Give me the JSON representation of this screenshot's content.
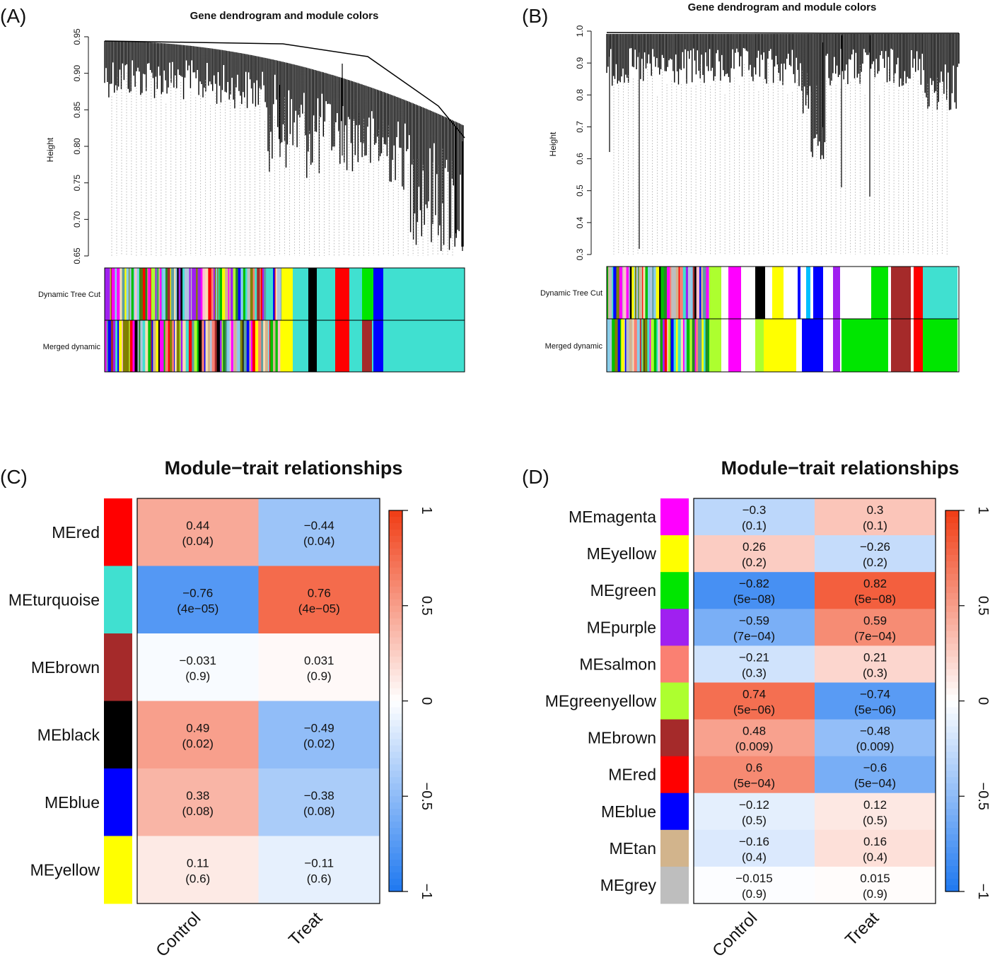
{
  "panels": {
    "A": {
      "letter": "(A)"
    },
    "B": {
      "letter": "(B)"
    },
    "C": {
      "letter": "(C)"
    },
    "D": {
      "letter": "(D)"
    }
  },
  "chart_data": [
    {
      "panel": "A",
      "type": "dendrogram",
      "title": "Gene dendrogram and module colors",
      "ylabel": "Height",
      "ylim": [
        0.65,
        0.95
      ],
      "yticks": [
        "0.65",
        "0.70",
        "0.75",
        "0.80",
        "0.85",
        "0.90",
        "0.95"
      ],
      "bands": [
        "Dynamic Tree Cut",
        "Merged dynamic"
      ]
    },
    {
      "panel": "B",
      "type": "dendrogram",
      "title": "Gene dendrogram and module colors",
      "ylabel": "Height",
      "ylim": [
        0.3,
        1.0
      ],
      "yticks": [
        "0.3",
        "0.4",
        "0.5",
        "0.6",
        "0.7",
        "0.8",
        "0.9",
        "1.0"
      ],
      "bands": [
        "Dynamic Tree Cut",
        "Merged dynamic"
      ]
    },
    {
      "panel": "C",
      "type": "heatmap",
      "title": "Module−trait relationships",
      "columns": [
        "Control",
        "Treat"
      ],
      "rows": [
        {
          "name": "MEred",
          "color": "#ff0000",
          "control": {
            "value": 0.44,
            "label": "0.44",
            "p": "(0.04)"
          },
          "treat": {
            "value": -0.44,
            "label": "−0.44",
            "p": "(0.04)"
          }
        },
        {
          "name": "MEturquoise",
          "color": "#40e0d0",
          "control": {
            "value": -0.76,
            "label": "−0.76",
            "p": "(4e−05)"
          },
          "treat": {
            "value": 0.76,
            "label": "0.76",
            "p": "(4e−05)"
          }
        },
        {
          "name": "MEbrown",
          "color": "#a52a2a",
          "control": {
            "value": -0.031,
            "label": "−0.031",
            "p": "(0.9)"
          },
          "treat": {
            "value": 0.031,
            "label": "0.031",
            "p": "(0.9)"
          }
        },
        {
          "name": "MEblack",
          "color": "#000000",
          "control": {
            "value": 0.49,
            "label": "0.49",
            "p": "(0.02)"
          },
          "treat": {
            "value": -0.49,
            "label": "−0.49",
            "p": "(0.02)"
          }
        },
        {
          "name": "MEblue",
          "color": "#0000ff",
          "control": {
            "value": 0.38,
            "label": "0.38",
            "p": "(0.08)"
          },
          "treat": {
            "value": -0.38,
            "label": "−0.38",
            "p": "(0.08)"
          }
        },
        {
          "name": "MEyellow",
          "color": "#ffff00",
          "control": {
            "value": 0.11,
            "label": "0.11",
            "p": "(0.6)"
          },
          "treat": {
            "value": -0.11,
            "label": "−0.11",
            "p": "(0.6)"
          }
        }
      ],
      "legend_ticks": [
        "1",
        "0.5",
        "0",
        "−0.5",
        "−1"
      ],
      "zlim": [
        -1,
        1
      ],
      "colors": {
        "low": "#1e78f0",
        "mid": "#ffffff",
        "high": "#f03c14"
      }
    },
    {
      "panel": "D",
      "type": "heatmap",
      "title": "Module−trait relationships",
      "columns": [
        "Control",
        "Treat"
      ],
      "rows": [
        {
          "name": "MEmagenta",
          "color": "#ff00ff",
          "control": {
            "value": -0.3,
            "label": "−0.3",
            "p": "(0.1)"
          },
          "treat": {
            "value": 0.3,
            "label": "0.3",
            "p": "(0.1)"
          }
        },
        {
          "name": "MEyellow",
          "color": "#ffff00",
          "control": {
            "value": 0.26,
            "label": "0.26",
            "p": "(0.2)"
          },
          "treat": {
            "value": -0.26,
            "label": "−0.26",
            "p": "(0.2)"
          }
        },
        {
          "name": "MEgreen",
          "color": "#00e600",
          "control": {
            "value": -0.82,
            "label": "−0.82",
            "p": "(5e−08)"
          },
          "treat": {
            "value": 0.82,
            "label": "0.82",
            "p": "(5e−08)"
          }
        },
        {
          "name": "MEpurple",
          "color": "#a020f0",
          "control": {
            "value": -0.59,
            "label": "−0.59",
            "p": "(7e−04)"
          },
          "treat": {
            "value": 0.59,
            "label": "0.59",
            "p": "(7e−04)"
          }
        },
        {
          "name": "MEsalmon",
          "color": "#fa8072",
          "control": {
            "value": -0.21,
            "label": "−0.21",
            "p": "(0.3)"
          },
          "treat": {
            "value": 0.21,
            "label": "0.21",
            "p": "(0.3)"
          }
        },
        {
          "name": "MEgreenyellow",
          "color": "#adff2f",
          "control": {
            "value": 0.74,
            "label": "0.74",
            "p": "(5e−06)"
          },
          "treat": {
            "value": -0.74,
            "label": "−0.74",
            "p": "(5e−06)"
          }
        },
        {
          "name": "MEbrown",
          "color": "#a52a2a",
          "control": {
            "value": 0.48,
            "label": "0.48",
            "p": "(0.009)"
          },
          "treat": {
            "value": -0.48,
            "label": "−0.48",
            "p": "(0.009)"
          }
        },
        {
          "name": "MEred",
          "color": "#ff0000",
          "control": {
            "value": 0.6,
            "label": "0.6",
            "p": "(5e−04)"
          },
          "treat": {
            "value": -0.6,
            "label": "−0.6",
            "p": "(5e−04)"
          }
        },
        {
          "name": "MEblue",
          "color": "#0000ff",
          "control": {
            "value": -0.12,
            "label": "−0.12",
            "p": "(0.5)"
          },
          "treat": {
            "value": 0.12,
            "label": "0.12",
            "p": "(0.5)"
          }
        },
        {
          "name": "MEtan",
          "color": "#d2b48c",
          "control": {
            "value": -0.16,
            "label": "−0.16",
            "p": "(0.4)"
          },
          "treat": {
            "value": 0.16,
            "label": "0.16",
            "p": "(0.4)"
          }
        },
        {
          "name": "MEgrey",
          "color": "#bebebe",
          "control": {
            "value": -0.015,
            "label": "−0.015",
            "p": "(0.9)"
          },
          "treat": {
            "value": 0.015,
            "label": "0.015",
            "p": "(0.9)"
          }
        }
      ],
      "legend_ticks": [
        "1",
        "0.5",
        "0",
        "−0.5",
        "−1"
      ],
      "zlim": [
        -1,
        1
      ],
      "colors": {
        "low": "#1e78f0",
        "mid": "#ffffff",
        "high": "#f03c14"
      }
    }
  ]
}
